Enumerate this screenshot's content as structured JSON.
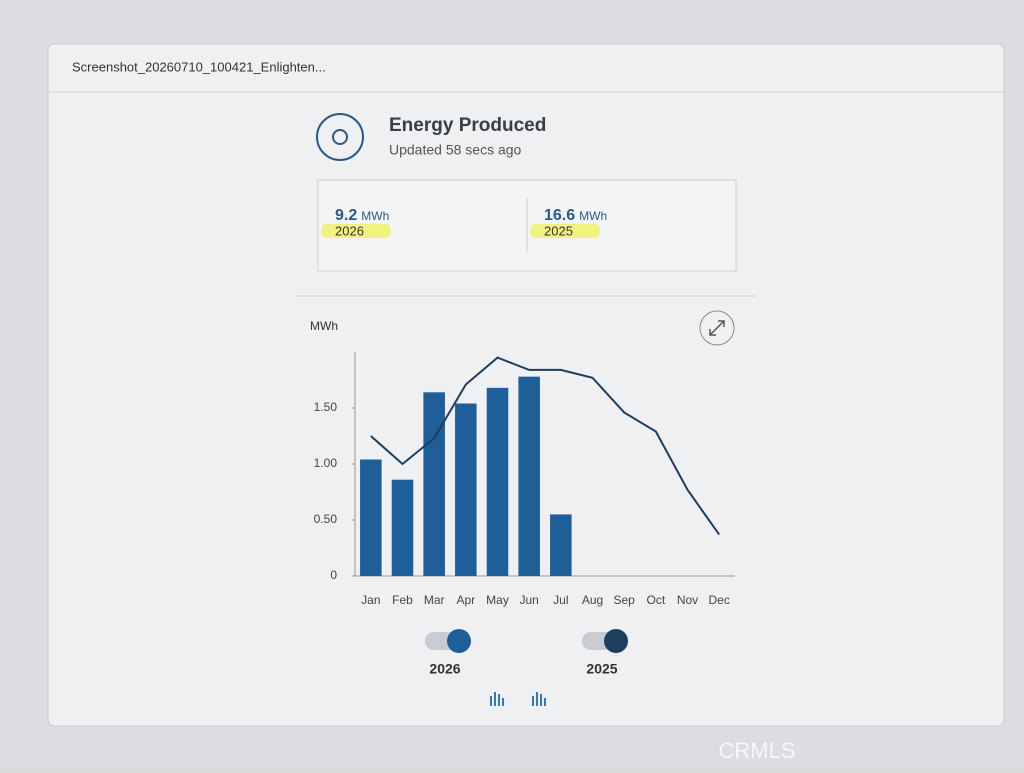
{
  "window": {
    "title": "Screenshot_20260710_100421_Enlighten..."
  },
  "header": {
    "title": "Energy Produced",
    "subtitle": "Updated 58 secs ago"
  },
  "summary": [
    {
      "value": "9.2",
      "unit": "MWh",
      "label": "2026"
    },
    {
      "value": "16.6",
      "unit": "MWh",
      "label": "2025"
    }
  ],
  "chart_data": {
    "type": "bar-line",
    "y_label": "MWh",
    "categories": [
      "Jan",
      "Feb",
      "Mar",
      "Apr",
      "May",
      "Jun",
      "Jul",
      "Aug",
      "Sep",
      "Oct",
      "Nov",
      "Dec"
    ],
    "series": [
      {
        "name": "2026",
        "type": "bar",
        "color": "#1f5f99",
        "values": [
          1.04,
          0.86,
          1.64,
          1.54,
          1.68,
          1.78,
          0.55,
          null,
          null,
          null,
          null,
          null
        ]
      },
      {
        "name": "2025",
        "type": "line",
        "color": "#1d3f5e",
        "values": [
          1.25,
          1.0,
          1.23,
          1.71,
          1.95,
          1.84,
          1.84,
          1.77,
          1.46,
          1.29,
          0.77,
          0.37
        ]
      }
    ],
    "ylim": [
      0,
      2
    ],
    "yticks": [
      0,
      {
        "value": 0.5,
        "label": "0.50"
      },
      {
        "value": 1,
        "label": "1.00"
      },
      {
        "value": 1.5,
        "label": "1.50"
      }
    ]
  },
  "watermark": "CRMLS"
}
